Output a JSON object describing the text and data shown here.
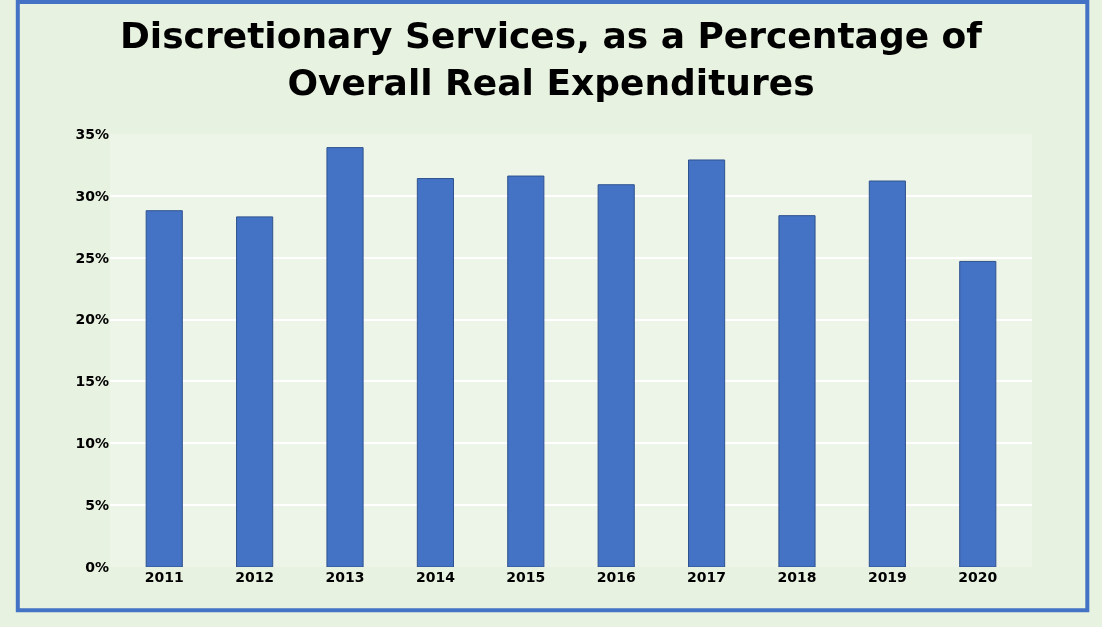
{
  "chart_data": {
    "type": "bar",
    "title": "Discretionary Services, as a Percentage of\nOverall Real Expenditures",
    "categories": [
      "2011",
      "2012",
      "2013",
      "2014",
      "2015",
      "2016",
      "2017",
      "2018",
      "2019",
      "2020"
    ],
    "values": [
      28.8,
      28.3,
      33.9,
      31.4,
      31.6,
      30.9,
      32.9,
      28.4,
      31.2,
      24.7
    ],
    "color": "#4472c4",
    "ylim": [
      0,
      35
    ],
    "yticks": [
      {
        "value": 0,
        "label": "0%"
      },
      {
        "value": 5,
        "label": "5%"
      },
      {
        "value": 10,
        "label": "10%"
      },
      {
        "value": 15,
        "label": "15%"
      },
      {
        "value": 20,
        "label": "20%"
      },
      {
        "value": 25,
        "label": "25%"
      },
      {
        "value": 30,
        "label": "30%"
      },
      {
        "value": 35,
        "label": "35%"
      }
    ],
    "grid": "y"
  }
}
